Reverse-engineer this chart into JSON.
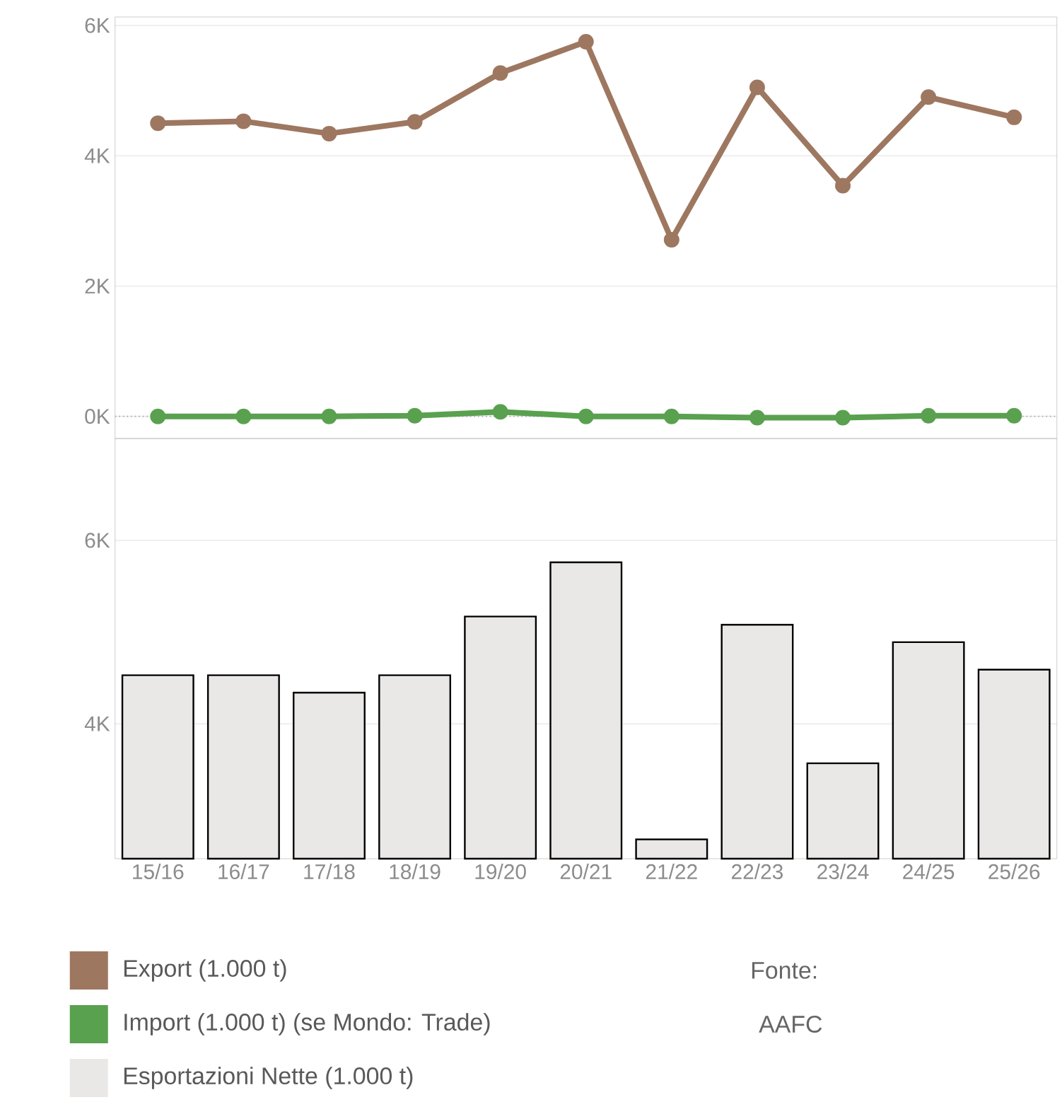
{
  "chart_data": [
    {
      "type": "line",
      "categories": [
        null,
        null,
        null,
        null,
        null,
        null,
        null,
        null,
        null,
        null,
        null
      ],
      "series": [
        {
          "name": "Export (1.000 t)",
          "color": "#9e7760",
          "values": [
            4500,
            4530,
            4340,
            4520,
            5270,
            5750,
            2710,
            5050,
            3540,
            4900,
            4590
          ]
        },
        {
          "name": "Import (1.000 t) (se Mondo: Trade)",
          "color": "#59a14f",
          "values": [
            0,
            0,
            0,
            10,
            70,
            0,
            0,
            -20,
            -20,
            10,
            10
          ]
        }
      ],
      "ylim": [
        -340,
        6130
      ],
      "yticks": [
        {
          "value": 0,
          "label": "0K"
        },
        {
          "value": 2000,
          "label": "2K"
        },
        {
          "value": 4000,
          "label": "4K"
        },
        {
          "value": 6000,
          "label": "6K"
        }
      ],
      "grid": "y",
      "marker": "circle",
      "line_style": "solid",
      "legend": "bottom",
      "tick_labels": "y",
      "ref_lines": [
        {
          "axis": "y",
          "value": 0,
          "line_style": "dotted",
          "color": "#aaaaaa"
        }
      ]
    },
    {
      "type": "bar",
      "categories": [
        "15/16",
        "16/17",
        "17/18",
        "18/19",
        "19/20",
        "20/21",
        "21/22",
        "22/23",
        "23/24",
        "24/25",
        "25/26"
      ],
      "series": [
        {
          "name": "Esportazioni Nette (1.000 t)",
          "color": "#e9e8e6",
          "values": [
            4530,
            4530,
            4340,
            4530,
            5170,
            5760,
            2740,
            5080,
            3570,
            4890,
            4590
          ]
        }
      ],
      "ylim": [
        2530,
        7110
      ],
      "yticks": [
        {
          "value": 4000,
          "label": "4K"
        },
        {
          "value": 6000,
          "label": "6K"
        }
      ],
      "grid": "y",
      "legend": "bottom",
      "annotations": [
        "Fonte:",
        "AAFC"
      ]
    }
  ]
}
